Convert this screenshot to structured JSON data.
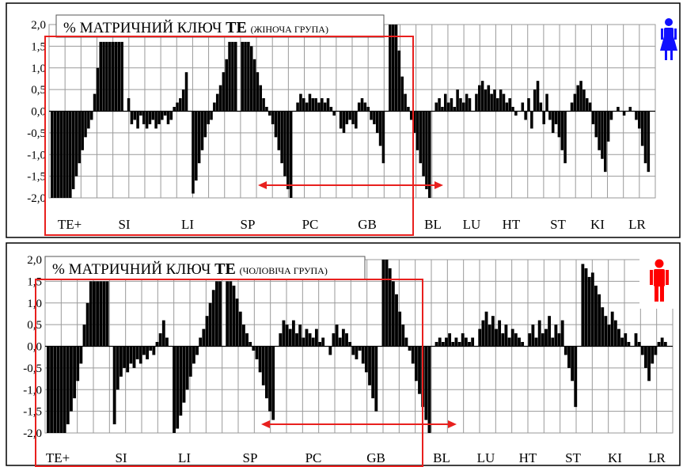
{
  "colors": {
    "bars": "#000000",
    "grid": "#9a9a9a",
    "highlight": "#e8201e",
    "female_icon": "#1010ff",
    "male_icon": "#ff0000"
  },
  "icons": {
    "female": "female-figure-icon",
    "male": "male-figure-icon"
  },
  "chart_data": [
    {
      "type": "bar",
      "title_prefix": "% МАТРИЧНИЙ КЛЮЧ",
      "title_bold": "TE",
      "subtitle": "(ЖІНОЧА ГРУПА)",
      "ylim": [
        -2.0,
        2.0
      ],
      "yticks": [
        "2,0",
        "1,5",
        "1,0",
        "0,5",
        "0,0",
        "-0,5",
        "-1,0",
        "-1,5",
        "-2,0"
      ],
      "categories": [
        "TE+",
        "SI",
        "LI",
        "SP",
        "PC",
        "GB",
        "BL",
        "LU",
        "HT",
        "ST",
        "KI",
        "LR"
      ],
      "segments": [
        {
          "name": "TE+",
          "values": [
            -2.0,
            -2.0,
            -2.0,
            -2.0,
            -2.0,
            -2.0,
            -2.0,
            -1.8,
            -1.5,
            -1.2,
            -0.9,
            -0.6,
            -0.4,
            -0.2,
            0.4,
            1.0,
            1.6,
            1.6,
            1.6,
            1.6,
            1.6,
            1.6,
            1.6,
            1.6
          ]
        },
        {
          "name": "SI",
          "values": [
            0.3,
            -0.3,
            -0.2,
            -0.4,
            -0.1,
            -0.3,
            -0.4,
            -0.3,
            -0.2,
            -0.4,
            -0.3,
            -0.2,
            -0.1,
            -0.3,
            -0.2,
            0.1,
            0.2,
            0.3,
            0.5,
            0.9
          ]
        },
        {
          "name": "LI",
          "values": [
            -1.9,
            -1.6,
            -1.2,
            -0.9,
            -0.6,
            -0.3,
            -0.2,
            0.2,
            0.4,
            0.6,
            0.9,
            1.2,
            1.6,
            1.6,
            1.6
          ]
        },
        {
          "name": "SP",
          "values": [
            1.6,
            1.6,
            1.6,
            1.5,
            1.2,
            0.9,
            0.6,
            0.3,
            0.1,
            -0.1,
            -0.3,
            -0.6,
            -0.9,
            -1.2,
            -1.5,
            -1.8,
            -2.0
          ]
        },
        {
          "name": "PC",
          "values": [
            0.2,
            0.4,
            0.3,
            0.2,
            0.4,
            0.3,
            0.3,
            0.2,
            0.3,
            0.2,
            0.3,
            0.1,
            -0.1
          ]
        },
        {
          "name": "GB",
          "values": [
            -0.4,
            -0.5,
            -0.3,
            -0.2,
            -0.3,
            -0.4,
            0.2,
            0.3,
            0.2,
            0.1,
            -0.2,
            -0.3,
            -0.5,
            -0.8,
            -1.2
          ]
        },
        {
          "name": "BL",
          "values": [
            2.0,
            2.0,
            2.0,
            1.4,
            0.8,
            0.4,
            0.1,
            -0.2,
            -0.5,
            -0.9,
            -1.2,
            -1.5,
            -1.8,
            -2.0
          ]
        },
        {
          "name": "LU",
          "values": [
            0.2,
            0.3,
            0.1,
            0.4,
            0.2,
            0.3,
            0.1,
            0.5,
            0.3,
            0.2,
            0.4,
            0.3
          ]
        },
        {
          "name": "HT",
          "values": [
            0.4,
            0.6,
            0.7,
            0.5,
            0.6,
            0.4,
            0.5,
            0.3,
            0.5,
            0.4,
            0.2,
            0.3,
            0.1,
            -0.1
          ]
        },
        {
          "name": "ST",
          "values": [
            0.2,
            -0.2,
            0.3,
            -0.4,
            0.5,
            0.7,
            0.2,
            -0.3,
            0.4,
            -0.2,
            -0.5,
            -0.3,
            -0.6,
            -0.9,
            -1.2
          ]
        },
        {
          "name": "KI",
          "values": [
            0.2,
            0.4,
            0.6,
            0.7,
            0.5,
            0.3,
            0.2,
            -0.3,
            -0.6,
            -0.9,
            -1.1,
            -1.4,
            -0.7,
            -0.2
          ]
        },
        {
          "name": "LR",
          "values": [
            0.1,
            0.0,
            -0.1,
            0.0,
            0.1,
            0.0,
            -0.2,
            -0.4,
            -0.8,
            -1.2,
            -1.4
          ]
        }
      ]
    },
    {
      "type": "bar",
      "title_prefix": "% МАТРИЧНИЙ КЛЮЧ",
      "title_bold": "TE",
      "subtitle": "(ЧОЛОВІЧА ГРУПА)",
      "ylim": [
        -2.0,
        2.0
      ],
      "yticks": [
        "2,0",
        "1,5",
        "1,0",
        "0,5",
        "0,0",
        "-0,5",
        "-1,0",
        "-1,5",
        "-2,0"
      ],
      "categories": [
        "TE+",
        "SI",
        "LI",
        "SP",
        "PC",
        "GB",
        "BL",
        "LU",
        "HT",
        "ST",
        "KI",
        "LR"
      ],
      "segments": [
        {
          "name": "TE+",
          "values": [
            -2.0,
            -2.0,
            -2.0,
            -2.0,
            -2.0,
            -2.0,
            -1.8,
            -1.5,
            -1.2,
            -0.8,
            -0.4,
            0.5,
            1.0,
            1.5,
            1.5,
            1.5,
            1.5,
            1.5,
            1.5
          ]
        },
        {
          "name": "SI",
          "values": [
            -1.8,
            -1.0,
            -0.7,
            -0.5,
            -0.6,
            -0.4,
            -0.5,
            -0.3,
            -0.4,
            -0.2,
            -0.3,
            -0.1,
            -0.2,
            0.1,
            0.3,
            0.6,
            0.2
          ]
        },
        {
          "name": "LI",
          "values": [
            -2.0,
            -1.9,
            -1.6,
            -1.3,
            -1.0,
            -0.7,
            -0.4,
            -0.2,
            0.2,
            0.4,
            0.7,
            1.0,
            1.3,
            1.5,
            1.5
          ]
        },
        {
          "name": "SP",
          "values": [
            1.5,
            1.5,
            1.4,
            1.1,
            0.8,
            0.5,
            0.3,
            0.1,
            -0.1,
            -0.3,
            -0.6,
            -0.9,
            -1.2,
            -1.5,
            -1.7
          ]
        },
        {
          "name": "PC",
          "values": [
            0.3,
            0.6,
            0.5,
            0.4,
            0.6,
            0.3,
            0.5,
            0.2,
            0.4,
            0.3,
            0.2,
            0.4,
            0.1,
            0.2
          ]
        },
        {
          "name": "GB",
          "values": [
            -0.2,
            0.3,
            0.5,
            0.2,
            0.4,
            0.3,
            0.1,
            -0.2,
            -0.3,
            -0.1,
            -0.4,
            -0.6,
            -0.9,
            -1.2,
            -1.5
          ]
        },
        {
          "name": "BL",
          "values": [
            2.0,
            2.0,
            1.8,
            1.5,
            1.2,
            0.8,
            0.5,
            0.2,
            -0.1,
            -0.4,
            -0.8,
            -1.1,
            -1.4,
            -1.7,
            -2.0
          ]
        },
        {
          "name": "LU",
          "values": [
            0.1,
            0.2,
            0.1,
            0.2,
            0.3,
            0.1,
            0.2,
            0.1,
            0.3,
            0.2,
            0.1,
            0.2
          ]
        },
        {
          "name": "HT",
          "values": [
            0.4,
            0.6,
            0.8,
            0.5,
            0.7,
            0.4,
            0.6,
            0.3,
            0.5,
            0.2,
            0.4,
            0.3,
            0.2,
            0.1
          ]
        },
        {
          "name": "ST",
          "values": [
            0.3,
            0.5,
            0.2,
            0.6,
            0.3,
            0.4,
            0.7,
            0.2,
            0.5,
            0.3,
            0.6,
            -0.2,
            -0.5,
            -0.8,
            -1.4
          ]
        },
        {
          "name": "KI",
          "values": [
            1.9,
            1.8,
            1.6,
            1.7,
            1.4,
            1.2,
            0.9,
            0.7,
            0.5,
            0.8,
            0.6,
            0.4,
            0.2,
            0.3,
            0.1
          ]
        },
        {
          "name": "LR",
          "values": [
            0.3,
            0.1,
            -0.2,
            -0.5,
            -0.8,
            -0.4,
            -0.2,
            0.1,
            0.2,
            0.1
          ]
        }
      ]
    }
  ]
}
